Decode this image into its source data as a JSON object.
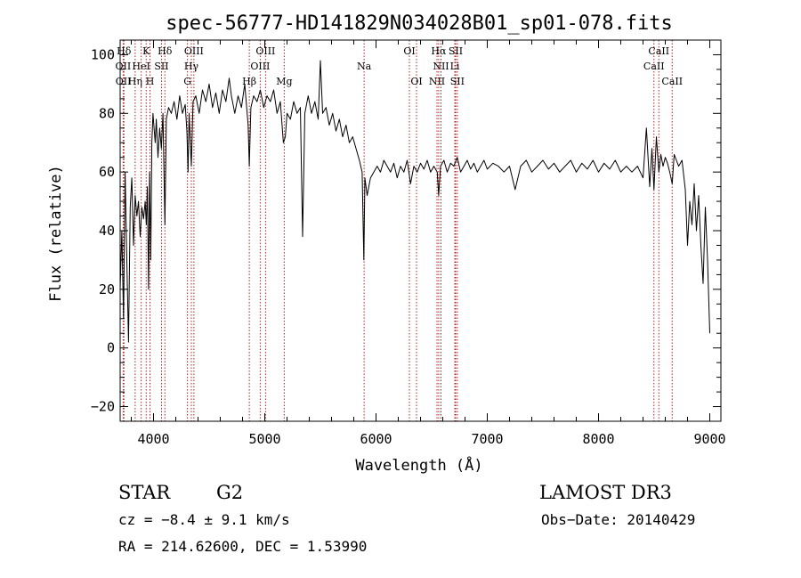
{
  "chart_data": {
    "type": "line",
    "title": "spec-56777-HD141829N034028B01_sp01-078.fits",
    "xlabel": "Wavelength (Å)",
    "ylabel": "Flux (relative)",
    "xlim": [
      3700,
      9100
    ],
    "ylim": [
      -25,
      105
    ],
    "xticks": [
      4000,
      5000,
      6000,
      7000,
      8000,
      9000
    ],
    "yticks": [
      -20,
      0,
      20,
      40,
      60,
      80,
      100
    ],
    "grid": false,
    "line_color": "#000000",
    "marker_color": "#b22222",
    "series": [
      {
        "points": [
          [
            3700,
            20
          ],
          [
            3715,
            40
          ],
          [
            3730,
            10
          ],
          [
            3745,
            60
          ],
          [
            3760,
            30
          ],
          [
            3775,
            2
          ],
          [
            3790,
            48
          ],
          [
            3805,
            58
          ],
          [
            3820,
            35
          ],
          [
            3835,
            52
          ],
          [
            3850,
            45
          ],
          [
            3865,
            50
          ],
          [
            3880,
            38
          ],
          [
            3895,
            48
          ],
          [
            3910,
            44
          ],
          [
            3925,
            50
          ],
          [
            3935,
            42
          ],
          [
            3945,
            55
          ],
          [
            3955,
            20
          ],
          [
            3965,
            60
          ],
          [
            3975,
            30
          ],
          [
            3985,
            70
          ],
          [
            3995,
            80
          ],
          [
            4005,
            75
          ],
          [
            4015,
            70
          ],
          [
            4025,
            78
          ],
          [
            4040,
            65
          ],
          [
            4055,
            75
          ],
          [
            4070,
            68
          ],
          [
            4085,
            80
          ],
          [
            4102,
            42
          ],
          [
            4115,
            78
          ],
          [
            4135,
            82
          ],
          [
            4160,
            80
          ],
          [
            4185,
            84
          ],
          [
            4210,
            78
          ],
          [
            4235,
            86
          ],
          [
            4260,
            80
          ],
          [
            4285,
            83
          ],
          [
            4300,
            74
          ],
          [
            4310,
            60
          ],
          [
            4320,
            80
          ],
          [
            4340,
            62
          ],
          [
            4355,
            84
          ],
          [
            4380,
            86
          ],
          [
            4410,
            80
          ],
          [
            4440,
            88
          ],
          [
            4470,
            84
          ],
          [
            4500,
            90
          ],
          [
            4530,
            82
          ],
          [
            4560,
            87
          ],
          [
            4590,
            80
          ],
          [
            4620,
            88
          ],
          [
            4650,
            84
          ],
          [
            4680,
            92
          ],
          [
            4700,
            86
          ],
          [
            4730,
            80
          ],
          [
            4760,
            86
          ],
          [
            4790,
            82
          ],
          [
            4820,
            90
          ],
          [
            4850,
            76
          ],
          [
            4861,
            62
          ],
          [
            4875,
            82
          ],
          [
            4900,
            86
          ],
          [
            4930,
            84
          ],
          [
            4960,
            88
          ],
          [
            4990,
            82
          ],
          [
            5020,
            86
          ],
          [
            5050,
            84
          ],
          [
            5080,
            88
          ],
          [
            5110,
            80
          ],
          [
            5140,
            84
          ],
          [
            5167,
            70
          ],
          [
            5185,
            72
          ],
          [
            5200,
            80
          ],
          [
            5230,
            78
          ],
          [
            5260,
            84
          ],
          [
            5290,
            80
          ],
          [
            5320,
            82
          ],
          [
            5340,
            38
          ],
          [
            5360,
            80
          ],
          [
            5390,
            86
          ],
          [
            5420,
            80
          ],
          [
            5450,
            84
          ],
          [
            5480,
            78
          ],
          [
            5500,
            98
          ],
          [
            5520,
            80
          ],
          [
            5550,
            82
          ],
          [
            5580,
            76
          ],
          [
            5610,
            80
          ],
          [
            5640,
            74
          ],
          [
            5670,
            78
          ],
          [
            5700,
            72
          ],
          [
            5730,
            76
          ],
          [
            5760,
            70
          ],
          [
            5790,
            72
          ],
          [
            5820,
            68
          ],
          [
            5850,
            64
          ],
          [
            5875,
            60
          ],
          [
            5890,
            30
          ],
          [
            5900,
            58
          ],
          [
            5920,
            52
          ],
          [
            5950,
            58
          ],
          [
            5980,
            60
          ],
          [
            6010,
            62
          ],
          [
            6040,
            60
          ],
          [
            6070,
            64
          ],
          [
            6100,
            62
          ],
          [
            6130,
            60
          ],
          [
            6160,
            63
          ],
          [
            6190,
            58
          ],
          [
            6220,
            62
          ],
          [
            6250,
            60
          ],
          [
            6280,
            64
          ],
          [
            6310,
            56
          ],
          [
            6340,
            62
          ],
          [
            6370,
            60
          ],
          [
            6400,
            63
          ],
          [
            6430,
            61
          ],
          [
            6460,
            64
          ],
          [
            6490,
            60
          ],
          [
            6520,
            62
          ],
          [
            6550,
            60
          ],
          [
            6563,
            52
          ],
          [
            6580,
            62
          ],
          [
            6610,
            64
          ],
          [
            6640,
            60
          ],
          [
            6670,
            63
          ],
          [
            6700,
            62
          ],
          [
            6730,
            65
          ],
          [
            6760,
            60
          ],
          [
            6790,
            62
          ],
          [
            6820,
            64
          ],
          [
            6850,
            61
          ],
          [
            6880,
            63
          ],
          [
            6910,
            60
          ],
          [
            6940,
            62
          ],
          [
            6970,
            64
          ],
          [
            7000,
            61
          ],
          [
            7050,
            63
          ],
          [
            7100,
            62
          ],
          [
            7150,
            60
          ],
          [
            7200,
            62
          ],
          [
            7250,
            54
          ],
          [
            7300,
            62
          ],
          [
            7350,
            64
          ],
          [
            7400,
            60
          ],
          [
            7450,
            62
          ],
          [
            7500,
            64
          ],
          [
            7550,
            61
          ],
          [
            7600,
            63
          ],
          [
            7650,
            60
          ],
          [
            7700,
            62
          ],
          [
            7750,
            64
          ],
          [
            7800,
            60
          ],
          [
            7850,
            63
          ],
          [
            7900,
            61
          ],
          [
            7950,
            64
          ],
          [
            8000,
            60
          ],
          [
            8050,
            63
          ],
          [
            8100,
            61
          ],
          [
            8150,
            64
          ],
          [
            8200,
            60
          ],
          [
            8250,
            62
          ],
          [
            8300,
            60
          ],
          [
            8350,
            62
          ],
          [
            8400,
            58
          ],
          [
            8430,
            75
          ],
          [
            8460,
            55
          ],
          [
            8480,
            68
          ],
          [
            8498,
            54
          ],
          [
            8520,
            72
          ],
          [
            8542,
            60
          ],
          [
            8560,
            66
          ],
          [
            8580,
            62
          ],
          [
            8600,
            65
          ],
          [
            8620,
            63
          ],
          [
            8640,
            60
          ],
          [
            8662,
            56
          ],
          [
            8680,
            66
          ],
          [
            8700,
            64
          ],
          [
            8720,
            62
          ],
          [
            8750,
            64
          ],
          [
            8780,
            54
          ],
          [
            8800,
            35
          ],
          [
            8820,
            50
          ],
          [
            8840,
            42
          ],
          [
            8860,
            56
          ],
          [
            8880,
            40
          ],
          [
            8900,
            52
          ],
          [
            8920,
            35
          ],
          [
            8940,
            22
          ],
          [
            8960,
            48
          ],
          [
            8980,
            30
          ],
          [
            9000,
            5
          ]
        ]
      }
    ],
    "spectral_lines": [
      {
        "label": "Hδ",
        "x": 3734,
        "row": 0
      },
      {
        "label": "K",
        "x": 3934,
        "row": 0
      },
      {
        "label": "Hδ",
        "x": 4102,
        "row": 0
      },
      {
        "label": "OIII",
        "x": 4363,
        "row": 0
      },
      {
        "label": "OIII",
        "x": 5007,
        "row": 0
      },
      {
        "label": "OI",
        "x": 6300,
        "row": 0
      },
      {
        "label": "Hα",
        "x": 6563,
        "row": 0
      },
      {
        "label": "SII",
        "x": 6716,
        "row": 0
      },
      {
        "label": "CaII",
        "x": 8542,
        "row": 0
      },
      {
        "label": "OII",
        "x": 3727,
        "row": 1
      },
      {
        "label": "HeI",
        "x": 3889,
        "row": 1
      },
      {
        "label": "SII",
        "x": 4072,
        "row": 1
      },
      {
        "label": "Hγ",
        "x": 4340,
        "row": 1
      },
      {
        "label": "OIII",
        "x": 4959,
        "row": 1
      },
      {
        "label": "Na",
        "x": 5893,
        "row": 1
      },
      {
        "label": "NII",
        "x": 6584,
        "row": 1
      },
      {
        "label": "Li",
        "x": 6708,
        "row": 1
      },
      {
        "label": "CaII",
        "x": 8498,
        "row": 1
      },
      {
        "label": "OII",
        "x": 3729,
        "row": 2
      },
      {
        "label": "Hη",
        "x": 3835,
        "row": 2
      },
      {
        "label": "H",
        "x": 3968,
        "row": 2
      },
      {
        "label": "G",
        "x": 4305,
        "row": 2
      },
      {
        "label": "Hβ",
        "x": 4861,
        "row": 2
      },
      {
        "label": "Mg",
        "x": 5175,
        "row": 2
      },
      {
        "label": "OI",
        "x": 6364,
        "row": 2
      },
      {
        "label": "NII",
        "x": 6548,
        "row": 2
      },
      {
        "label": "SII",
        "x": 6731,
        "row": 2
      },
      {
        "label": "CaII",
        "x": 8662,
        "row": 2
      }
    ]
  },
  "info": {
    "object_type": "STAR",
    "subclass": "G2",
    "survey": "LAMOST DR3",
    "cz": "cz = −8.4 ± 9.1 km/s",
    "obs_date": "Obs−Date: 20140429",
    "radec": "RA = 214.62600, DEC =    1.53990"
  }
}
